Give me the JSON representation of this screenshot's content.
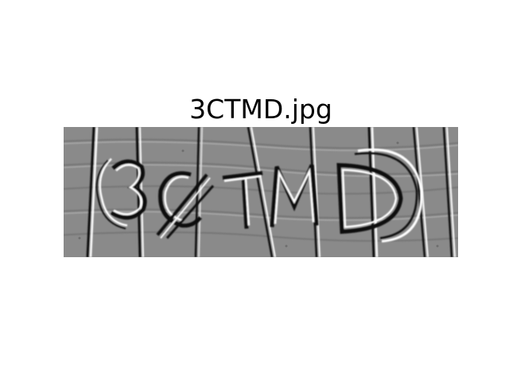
{
  "figure": {
    "title": "3CTMD.jpg"
  },
  "image": {
    "captcha_text": "3CTMD",
    "background_color": "#8a8a8a",
    "stroke_dark": "#111111",
    "stroke_light": "#ffffff"
  }
}
